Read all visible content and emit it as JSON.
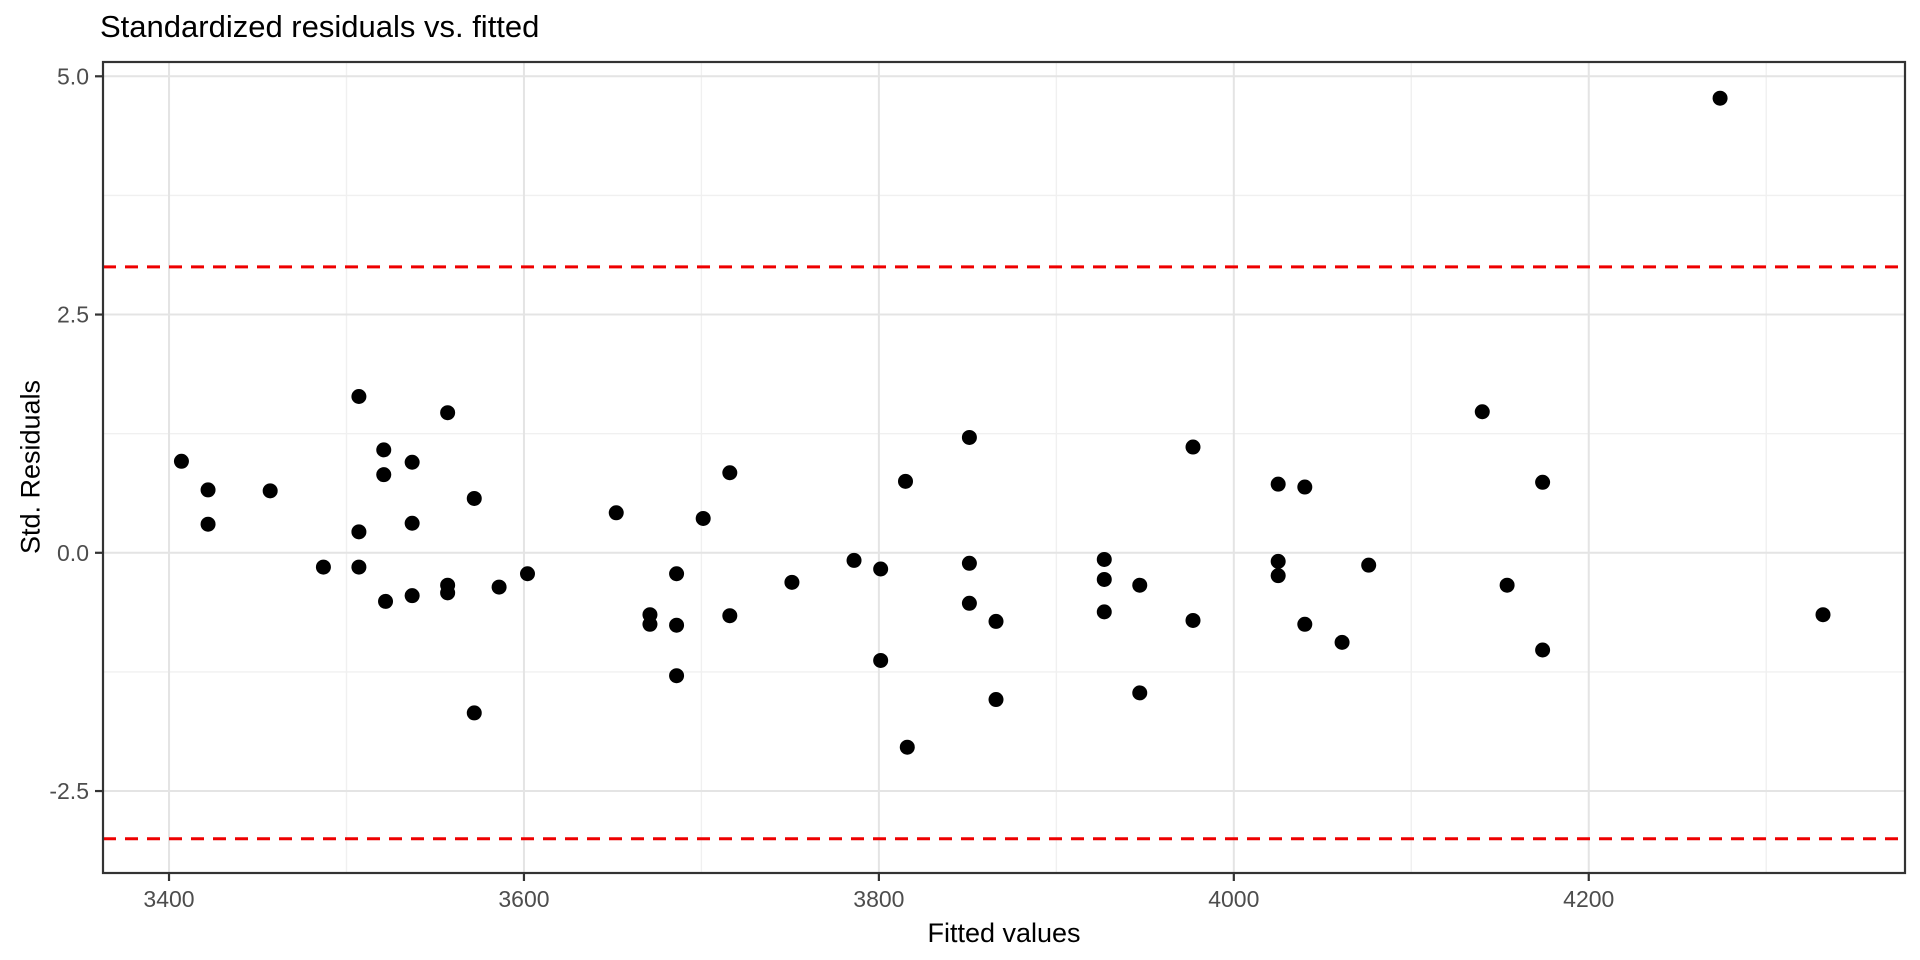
{
  "chart_data": {
    "type": "scatter",
    "title": "Standardized residuals vs. fitted",
    "xlabel": "Fitted values",
    "ylabel": "Std. Residuals",
    "xlim": [
      3362.8,
      4378.2
    ],
    "ylim": [
      -3.36,
      5.15
    ],
    "grid": true,
    "legend": false,
    "x_ticks_major": [
      3400,
      3600,
      3800,
      4000,
      4200
    ],
    "x_tick_labels": [
      "3400",
      "3600",
      "3800",
      "4000",
      "4200"
    ],
    "x_ticks_minor": [
      3500,
      3700,
      3900,
      4100,
      4300
    ],
    "y_ticks_major": [
      -2.5,
      0,
      2.5,
      5
    ],
    "y_tick_labels": [
      "-2.5",
      "0.0",
      "2.5",
      "5.0"
    ],
    "y_ticks_minor": [
      -1.25,
      1.25,
      3.75
    ],
    "reference_lines": [
      {
        "y": 3,
        "style": "dashed",
        "color": "#ee0000"
      },
      {
        "y": -3,
        "style": "dashed",
        "color": "#ee0000"
      }
    ],
    "point_color": "#000000",
    "point_radius": 7.5,
    "points": [
      [
        3407,
        0.96
      ],
      [
        3422,
        0.66
      ],
      [
        3422,
        0.3
      ],
      [
        3457,
        0.65
      ],
      [
        3487,
        -0.15
      ],
      [
        3507,
        1.64
      ],
      [
        3507,
        0.22
      ],
      [
        3507,
        -0.15
      ],
      [
        3521,
        1.08
      ],
      [
        3521,
        0.82
      ],
      [
        3522,
        -0.51
      ],
      [
        3537,
        0.95
      ],
      [
        3537,
        0.31
      ],
      [
        3537,
        -0.45
      ],
      [
        3557,
        1.47
      ],
      [
        3557,
        -0.34
      ],
      [
        3557,
        -0.42
      ],
      [
        3572,
        0.57
      ],
      [
        3572,
        -1.68
      ],
      [
        3586,
        -0.36
      ],
      [
        3602,
        -0.22
      ],
      [
        3652,
        0.42
      ],
      [
        3671,
        -0.65
      ],
      [
        3671,
        -0.75
      ],
      [
        3686,
        -0.22
      ],
      [
        3686,
        -0.76
      ],
      [
        3686,
        -1.29
      ],
      [
        3701,
        0.36
      ],
      [
        3716,
        0.84
      ],
      [
        3716,
        -0.66
      ],
      [
        3751,
        -0.31
      ],
      [
        3786,
        -0.08
      ],
      [
        3801,
        -0.17
      ],
      [
        3801,
        -1.13
      ],
      [
        3815,
        0.75
      ],
      [
        3816,
        -2.04
      ],
      [
        3851,
        1.21
      ],
      [
        3851,
        -0.11
      ],
      [
        3851,
        -0.53
      ],
      [
        3866,
        -0.72
      ],
      [
        3866,
        -1.54
      ],
      [
        3927,
        -0.07
      ],
      [
        3927,
        -0.28
      ],
      [
        3927,
        -0.62
      ],
      [
        3947,
        -0.34
      ],
      [
        3947,
        -1.47
      ],
      [
        3977,
        1.11
      ],
      [
        3977,
        -0.71
      ],
      [
        4025,
        0.72
      ],
      [
        4025,
        -0.09
      ],
      [
        4025,
        -0.24
      ],
      [
        4040,
        0.69
      ],
      [
        4040,
        -0.75
      ],
      [
        4061,
        -0.94
      ],
      [
        4076,
        -0.13
      ],
      [
        4140,
        1.48
      ],
      [
        4154,
        -0.34
      ],
      [
        4174,
        0.74
      ],
      [
        4174,
        -1.02
      ],
      [
        4274,
        4.77
      ],
      [
        4332,
        -0.65
      ]
    ]
  },
  "colors": {
    "panel_border": "#333333",
    "grid_major": "#e4e4e4",
    "grid_minor": "#f0f0f0",
    "tick": "#333333",
    "tick_label": "#4d4d4d",
    "reference": "#ee0000",
    "point": "#000000",
    "background": "#ffffff"
  }
}
